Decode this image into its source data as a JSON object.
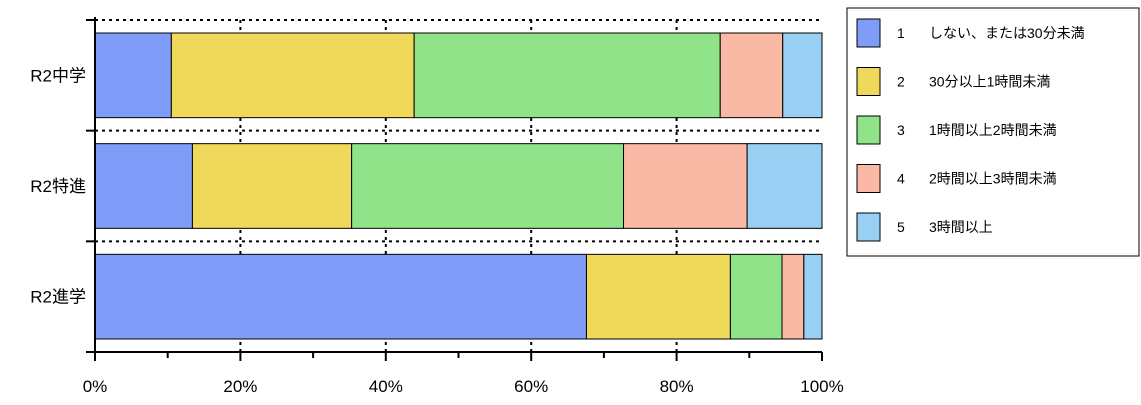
{
  "chart_data": {
    "type": "bar",
    "orientation": "horizontal",
    "stacked": "percent",
    "categories": [
      "R2中学",
      "R2特進",
      "R2進学"
    ],
    "series": [
      {
        "name": "しない、または30分未満",
        "key": "1",
        "color": "#7f9cf9",
        "values": [
          10.5,
          13.4,
          67.6
        ]
      },
      {
        "name": "30分以上1時間未満",
        "key": "2",
        "color": "#f0d95a",
        "values": [
          33.4,
          21.9,
          19.8
        ]
      },
      {
        "name": "1時間以上2時間未満",
        "key": "3",
        "color": "#90e388",
        "values": [
          42.1,
          37.4,
          7.1
        ]
      },
      {
        "name": "2時間以上3時間未満",
        "key": "4",
        "color": "#f9b9a5",
        "values": [
          8.6,
          17.0,
          3.0
        ]
      },
      {
        "name": "3時間以上",
        "key": "5",
        "color": "#98cff2",
        "values": [
          5.4,
          10.3,
          2.5
        ]
      }
    ],
    "xticks": [
      "0%",
      "20%",
      "40%",
      "60%",
      "80%",
      "100%"
    ],
    "xlim": [
      0,
      100
    ],
    "grid": true,
    "legend_position": "top-right"
  }
}
